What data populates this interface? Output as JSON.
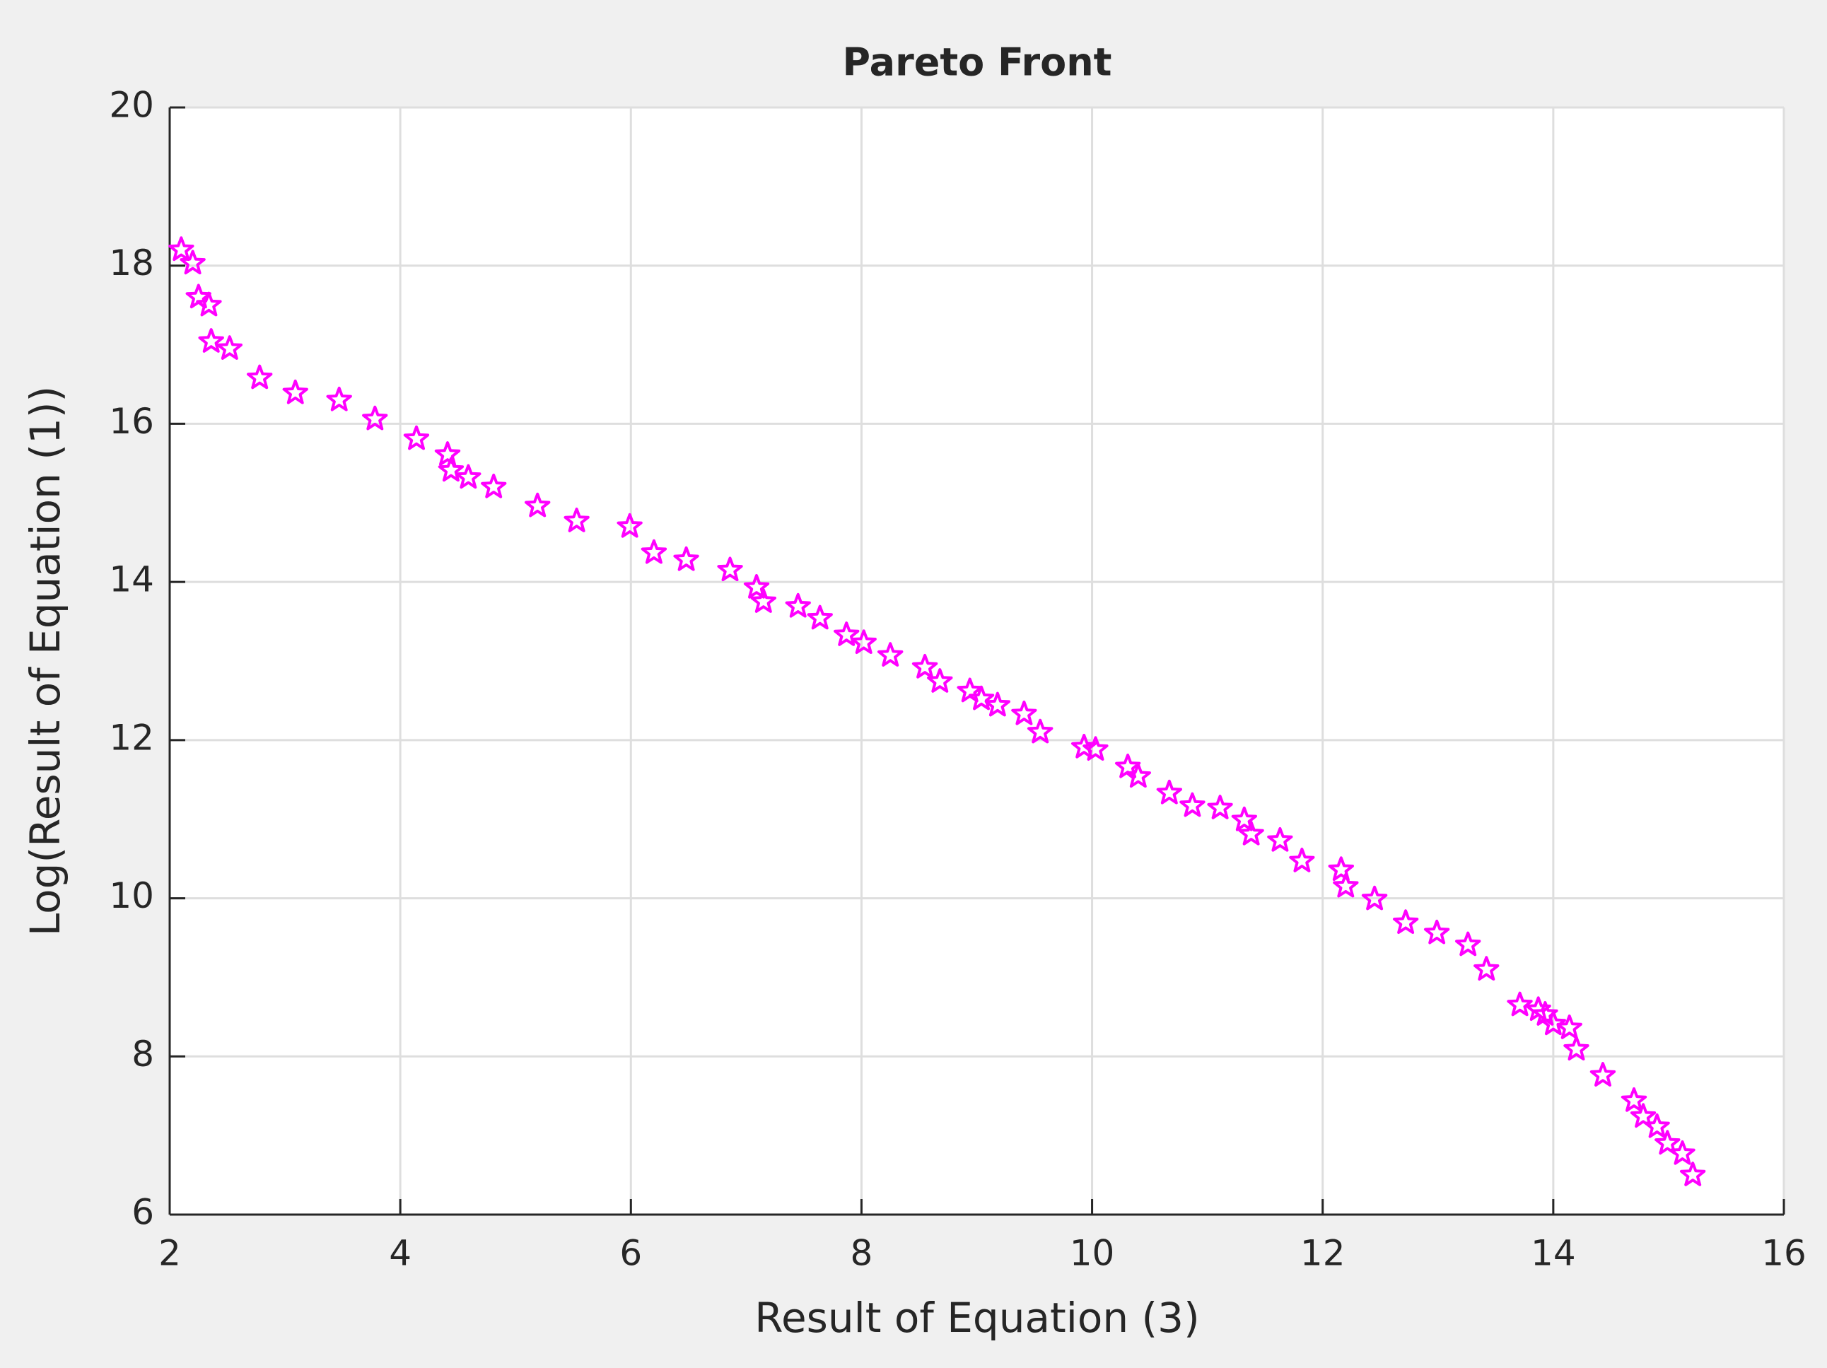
{
  "chart_data": {
    "type": "scatter",
    "title": "Pareto Front",
    "x_label": "Result of Equation (3)",
    "y_label": "Log(Result of Equation (1))",
    "color": "#ff00ff",
    "marker": "star",
    "grid": true,
    "xlim": [
      2,
      16
    ],
    "ylim": [
      6,
      20
    ],
    "xticks": [
      2,
      4,
      6,
      8,
      10,
      12,
      14,
      16
    ],
    "yticks": [
      6,
      8,
      10,
      12,
      14,
      16,
      18,
      20
    ],
    "x": [
      2.1,
      2.2,
      2.25,
      2.34,
      2.36,
      2.52,
      2.78,
      3.09,
      3.47,
      3.78,
      4.14,
      4.41,
      4.44,
      4.59,
      4.81,
      5.19,
      5.53,
      5.99,
      6.2,
      6.48,
      6.86,
      7.09,
      7.15,
      7.45,
      7.64,
      7.87,
      8.02,
      8.25,
      8.55,
      8.68,
      8.94,
      9.04,
      9.18,
      9.41,
      9.55,
      9.93,
      10.03,
      10.31,
      10.4,
      10.67,
      10.87,
      11.11,
      11.32,
      11.38,
      11.63,
      11.82,
      12.16,
      12.2,
      12.45,
      12.72,
      12.99,
      13.26,
      13.42,
      13.71,
      13.87,
      13.93,
      14.0,
      14.14,
      14.2,
      14.43,
      14.7,
      14.78,
      14.9,
      14.99,
      15.12,
      15.21
    ],
    "y": [
      18.2,
      18.03,
      17.6,
      17.5,
      17.04,
      16.95,
      16.58,
      16.39,
      16.3,
      16.06,
      15.81,
      15.61,
      15.41,
      15.32,
      15.2,
      14.96,
      14.77,
      14.7,
      14.37,
      14.28,
      14.15,
      13.93,
      13.75,
      13.69,
      13.54,
      13.33,
      13.23,
      13.07,
      12.92,
      12.74,
      12.62,
      12.52,
      12.44,
      12.33,
      12.1,
      11.91,
      11.88,
      11.66,
      11.54,
      11.33,
      11.17,
      11.14,
      10.99,
      10.81,
      10.73,
      10.47,
      10.36,
      10.15,
      9.99,
      9.69,
      9.56,
      9.41,
      9.1,
      8.65,
      8.59,
      8.53,
      8.41,
      8.36,
      8.09,
      7.76,
      7.44,
      7.24,
      7.11,
      6.9,
      6.77,
      6.5
    ]
  }
}
